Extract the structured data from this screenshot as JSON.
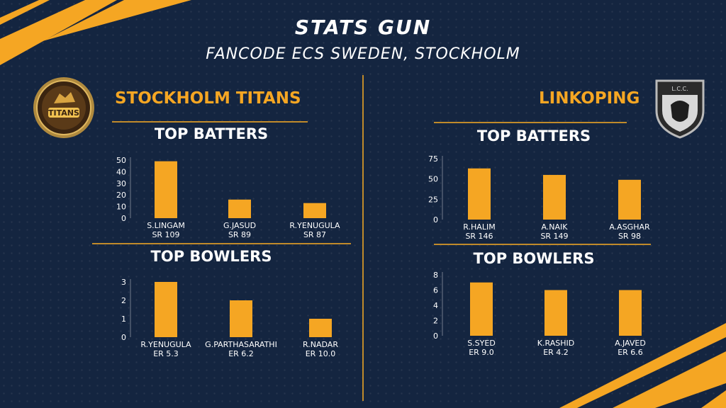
{
  "header": {
    "title": "STATS GUN",
    "subtitle": "FANCODE ECS SWEDEN, STOCKHOLM"
  },
  "teams": {
    "left": {
      "name": "STOCKHOLM TITANS",
      "logo_text": "TITANS",
      "batters_title": "TOP BATTERS",
      "bowlers_title": "TOP BOWLERS"
    },
    "right": {
      "name": "LINKOPING",
      "logo_text": "L.C.C.",
      "batters_title": "TOP BATTERS",
      "bowlers_title": "TOP BOWLERS"
    }
  },
  "colors": {
    "background": "#142540",
    "accent": "#f5a623",
    "rule": "#c08a2a",
    "text": "#ffffff"
  },
  "chart_data": [
    {
      "id": "left-batters",
      "type": "bar",
      "categories": [
        "S.LINGAM",
        "G.JASUD",
        "R.YENUGULA"
      ],
      "sublabels": [
        "SR 109",
        "SR 89",
        "SR 87"
      ],
      "values": [
        49,
        16,
        13
      ],
      "ylim": [
        0,
        50
      ],
      "yticks": [
        0,
        10,
        20,
        30,
        40,
        50
      ]
    },
    {
      "id": "left-bowlers",
      "type": "bar",
      "categories": [
        "R.YENUGULA",
        "G.PARTHASARATHI",
        "R.NADAR"
      ],
      "sublabels": [
        "ER 5.3",
        "ER 6.2",
        "ER 10.0"
      ],
      "values": [
        3,
        2,
        1
      ],
      "ylim": [
        0,
        3
      ],
      "yticks": [
        0,
        1,
        2,
        3
      ]
    },
    {
      "id": "right-batters",
      "type": "bar",
      "categories": [
        "R.HALIM",
        "A.NAIK",
        "A.ASGHAR"
      ],
      "sublabels": [
        "SR 146",
        "SR 149",
        "SR 98"
      ],
      "values": [
        63,
        55,
        49
      ],
      "ylim": [
        0,
        75
      ],
      "yticks": [
        0,
        25,
        50,
        75
      ]
    },
    {
      "id": "right-bowlers",
      "type": "bar",
      "categories": [
        "S.SYED",
        "K.RASHID",
        "A.JAVED"
      ],
      "sublabels": [
        "ER 9.0",
        "ER 4.2",
        "ER 6.6"
      ],
      "values": [
        7,
        6,
        6
      ],
      "ylim": [
        0,
        8
      ],
      "yticks": [
        0,
        2,
        4,
        6,
        8
      ]
    }
  ]
}
